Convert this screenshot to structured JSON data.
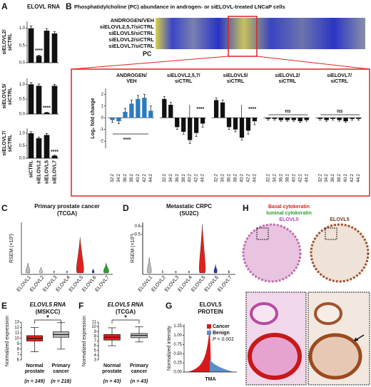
{
  "chart_data": [
    {
      "panel": "A",
      "type": "bar",
      "title": "ELOVL RNA",
      "ylabel": [
        "siELOVL2/",
        "siCTRL"
      ],
      "values": [
        1.0,
        0.2,
        0.93,
        0.85
      ],
      "errors": [
        0.07,
        0.02,
        0.06,
        0.05
      ],
      "color": "#111111",
      "ylim": [
        0,
        1.2
      ],
      "yticks": [
        {
          "value": 0,
          "label": "0.0"
        },
        {
          "value": 0.5,
          "label": "0.5"
        },
        {
          "value": 1,
          "label": "1.0"
        }
      ],
      "annotations": [
        "****"
      ]
    },
    {
      "panel": "",
      "type": "bar",
      "ylabel": [
        "siELOVL5/",
        "siCTRL"
      ],
      "values": [
        1.0,
        0.95,
        0.05,
        0.95
      ],
      "errors": [
        0.06,
        0.06,
        0.01,
        0.05
      ],
      "color": "#111111",
      "ylim": [
        0,
        1.2
      ],
      "yticks": [
        {
          "value": 0,
          "label": "0.0"
        },
        {
          "value": 0.5,
          "label": "0.5"
        },
        {
          "value": 1,
          "label": "1.0"
        }
      ],
      "annotations": [
        "****"
      ]
    },
    {
      "panel": "",
      "type": "bar",
      "ylabel": [
        "siELOVL7/",
        "siCTRL"
      ],
      "categories": [
        "siCTRL",
        "siELOVL2",
        "siELOVL5",
        "siELOVL7"
      ],
      "values": [
        1.0,
        0.8,
        0.93,
        0.1
      ],
      "errors": [
        0.06,
        0.05,
        0.06,
        0.02
      ],
      "color": "#111111",
      "ylim": [
        0,
        1.2
      ],
      "yticks": [
        {
          "value": 0,
          "label": "0.0"
        },
        {
          "value": 0.5,
          "label": "0.5"
        },
        {
          "value": 1,
          "label": "1.0"
        }
      ],
      "annotations": [
        "****"
      ]
    },
    {
      "panel": "B",
      "type": "heatmap",
      "title": "Phosphatidylcholine (PC) abundance in androgen- or siELOVL-treated LNCaP cells",
      "rows": [
        "ANDROGEN/VEH",
        "siELOVL2,5,7/siCTRL",
        "siELOVL5/siCTRL",
        "siELOVL2/siCTRL",
        "siELOVL7/siCTRL"
      ],
      "xlabel": "PC"
    },
    {
      "panel": "",
      "type": "grouped-bar",
      "ylabel": "Log₂ fold change",
      "categories": [
        "32:2",
        "34:2",
        "36:2",
        "38:2",
        "40:2",
        "42:2",
        "44:2"
      ],
      "ylim": [
        -2.6,
        2.5
      ],
      "yticks": [
        -2,
        -1,
        0,
        1,
        2
      ],
      "groups": [
        {
          "name": [
            "ANDROGEN/",
            "VEH"
          ],
          "color": "#2b7bbf",
          "values": [
            -0.2,
            -0.3,
            0.5,
            1.2,
            1.6,
            1.7,
            0.6
          ],
          "errors": [
            0.2,
            0.2,
            0.3,
            0.3,
            0.3,
            0.3,
            0.4
          ]
        },
        {
          "name": [
            "siELOVL2,5,7/",
            "siCTRL"
          ],
          "color": "#111111",
          "values": [
            1.6,
            1.1,
            -0.8,
            -1.2,
            -1.9,
            -1.3,
            -0.5
          ],
          "errors": [
            0.2,
            0.2,
            0.2,
            0.2,
            0.3,
            0.3,
            0.3
          ]
        },
        {
          "name": [
            "siELOVL5/",
            "siCTRL"
          ],
          "color": "#111111",
          "values": [
            1.5,
            1.3,
            -0.8,
            -1.0,
            -1.7,
            -1.1,
            -0.3
          ],
          "errors": [
            0.2,
            0.2,
            0.2,
            0.2,
            0.2,
            0.3,
            0.3
          ]
        },
        {
          "name": [
            "siELOVL2/",
            "siCTRL"
          ],
          "color": "#111111",
          "values": [
            -0.1,
            -0.1,
            -0.2,
            -0.2,
            -0.2,
            -0.3,
            -0.2
          ],
          "errors": [
            0.1,
            0.1,
            0.1,
            0.1,
            0.1,
            0.1,
            0.1
          ]
        },
        {
          "name": [
            "siELOVL7/",
            "siCTRL"
          ],
          "color": "#111111",
          "values": [
            -0.1,
            -0.2,
            -0.1,
            -0.2,
            -0.3,
            -0.1,
            -0.1
          ],
          "errors": [
            0.1,
            0.1,
            0.1,
            0.1,
            0.1,
            0.1,
            0.1
          ]
        }
      ],
      "annotations": [
        "****",
        "****",
        "****",
        "ns",
        "ns"
      ]
    },
    {
      "panel": "C",
      "type": "violin",
      "title": "Primary prostate cancer",
      "subtitle": "(TCGA)",
      "ylabel": "RSEM (×10³)",
      "categories": [
        "ELOVL1",
        "ELOVL2",
        "ELOVL3",
        "ELOVL4",
        "ELOVL5",
        "ELOVL6",
        "ELOVL7"
      ],
      "colors": [
        "#bbbbbb",
        "#cccccc",
        "#999999",
        "#999999",
        "#e0201b",
        "#2233aa",
        "#2ca02c"
      ]
    },
    {
      "panel": "D",
      "type": "violin",
      "title": "Metastatic CRPC",
      "subtitle": "(SU2C)",
      "ylabel": "RSEM (×10³)",
      "yticks": [
        0.5,
        0.6
      ],
      "ylim": [
        0,
        0.65
      ],
      "categories": [
        "ELOVL1",
        "ELOVL2",
        "ELOVL3",
        "ELOVL4",
        "ELOVL5",
        "ELOVL6",
        "ELOVL7"
      ],
      "colors": [
        "#bbbbbb",
        "#cccccc",
        "#999999",
        "#999999",
        "#e0201b",
        "#2233aa",
        "#2ca02c"
      ]
    },
    {
      "panel": "E",
      "type": "box",
      "title": "ELOVL5 RNA",
      "subtitle": "(MSKCC)",
      "ylabel": "Normalized expression",
      "categories": [
        [
          "Normal",
          "prostate"
        ],
        [
          "Primary",
          "cancer"
        ]
      ],
      "counts": [
        "(n = 149)",
        "(n = 218)"
      ],
      "colors": [
        "#e0201b",
        "#bbbbbb"
      ],
      "boxes": [
        {
          "min": 7.5,
          "q1": 9.5,
          "median": 10.0,
          "q3": 10.5,
          "max": 12.0
        },
        {
          "min": 8.0,
          "q1": 10.2,
          "median": 10.7,
          "q3": 11.2,
          "max": 12.9
        }
      ],
      "ylim": [
        6,
        13
      ],
      "yticks": [
        6,
        7,
        8,
        9,
        10,
        11,
        12,
        13
      ],
      "annotations": [
        "*"
      ]
    },
    {
      "panel": "F",
      "type": "box",
      "title": "ELOVL5 RNA",
      "subtitle": "(TCGA)",
      "ylabel": "Normalized expression",
      "categories": [
        [
          "Normal",
          "prostate"
        ],
        [
          "Primary",
          "cancer"
        ]
      ],
      "counts": [
        "(n = 43)",
        "(n = 43)"
      ],
      "colors": [
        "#e0201b",
        "#bbbbbb"
      ],
      "boxes": [
        {
          "min": 6.0,
          "q1": 7.2,
          "median": 7.8,
          "q3": 8.4,
          "max": 9.8
        },
        {
          "min": 6.8,
          "q1": 7.7,
          "median": 8.2,
          "q3": 8.6,
          "max": 10.0
        }
      ],
      "ylim": [
        3,
        11
      ],
      "yticks": [
        3,
        4,
        5,
        6,
        7,
        8,
        9,
        10,
        11
      ],
      "annotations": [
        "*"
      ]
    },
    {
      "panel": "G",
      "type": "area",
      "title": "ELOVL5",
      "subtitle": "PROTEIN",
      "ylabel": "Normalized intensity",
      "xlabel": "TMA",
      "series": [
        {
          "name": "Cancer",
          "color": "#d7191c"
        },
        {
          "name": "Benign",
          "color": "#5b8fc7"
        }
      ],
      "annotations": [
        "P < 0.001"
      ],
      "ylim": [
        0,
        1.3
      ],
      "yticks": [
        {
          "value": 0,
          "label": "0.00"
        },
        {
          "value": 0.25,
          "label": "0.25"
        },
        {
          "value": 0.5,
          "label": "0.50"
        },
        {
          "value": 0.75,
          "label": "0.75"
        },
        {
          "value": 1,
          "label": "1.00"
        },
        {
          "value": 1.25,
          "label": "1.25"
        }
      ]
    }
  ],
  "micrographs": {
    "panel": "H",
    "labels": [
      "Basal cytokeratin",
      "luminal cytokeratin",
      "ELOVL5"
    ],
    "right_label": "ELOVL5"
  }
}
